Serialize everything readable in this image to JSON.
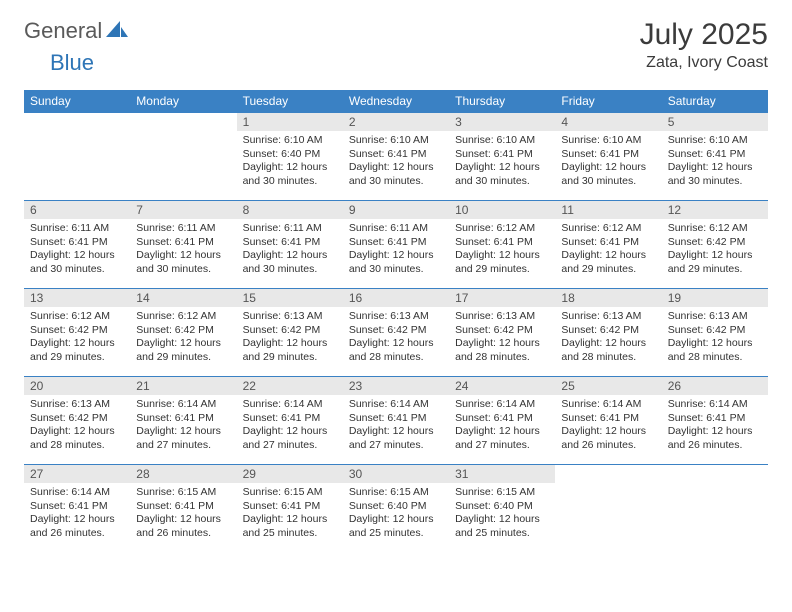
{
  "logo": {
    "general": "General",
    "blue": "Blue"
  },
  "title": {
    "month": "July 2025",
    "location": "Zata, Ivory Coast"
  },
  "colors": {
    "header_bg": "#3a81c4",
    "header_text": "#ffffff",
    "daynum_bg": "#e8e8e8",
    "border": "#3a81c4",
    "logo_blue": "#2e75b6",
    "logo_gray": "#5a5a5a"
  },
  "weekdays": [
    "Sunday",
    "Monday",
    "Tuesday",
    "Wednesday",
    "Thursday",
    "Friday",
    "Saturday"
  ],
  "first_day_index": 2,
  "days_in_month": 31,
  "days": {
    "1": {
      "sunrise": "6:10 AM",
      "sunset": "6:40 PM",
      "daylight": "12 hours and 30 minutes."
    },
    "2": {
      "sunrise": "6:10 AM",
      "sunset": "6:41 PM",
      "daylight": "12 hours and 30 minutes."
    },
    "3": {
      "sunrise": "6:10 AM",
      "sunset": "6:41 PM",
      "daylight": "12 hours and 30 minutes."
    },
    "4": {
      "sunrise": "6:10 AM",
      "sunset": "6:41 PM",
      "daylight": "12 hours and 30 minutes."
    },
    "5": {
      "sunrise": "6:10 AM",
      "sunset": "6:41 PM",
      "daylight": "12 hours and 30 minutes."
    },
    "6": {
      "sunrise": "6:11 AM",
      "sunset": "6:41 PM",
      "daylight": "12 hours and 30 minutes."
    },
    "7": {
      "sunrise": "6:11 AM",
      "sunset": "6:41 PM",
      "daylight": "12 hours and 30 minutes."
    },
    "8": {
      "sunrise": "6:11 AM",
      "sunset": "6:41 PM",
      "daylight": "12 hours and 30 minutes."
    },
    "9": {
      "sunrise": "6:11 AM",
      "sunset": "6:41 PM",
      "daylight": "12 hours and 30 minutes."
    },
    "10": {
      "sunrise": "6:12 AM",
      "sunset": "6:41 PM",
      "daylight": "12 hours and 29 minutes."
    },
    "11": {
      "sunrise": "6:12 AM",
      "sunset": "6:41 PM",
      "daylight": "12 hours and 29 minutes."
    },
    "12": {
      "sunrise": "6:12 AM",
      "sunset": "6:42 PM",
      "daylight": "12 hours and 29 minutes."
    },
    "13": {
      "sunrise": "6:12 AM",
      "sunset": "6:42 PM",
      "daylight": "12 hours and 29 minutes."
    },
    "14": {
      "sunrise": "6:12 AM",
      "sunset": "6:42 PM",
      "daylight": "12 hours and 29 minutes."
    },
    "15": {
      "sunrise": "6:13 AM",
      "sunset": "6:42 PM",
      "daylight": "12 hours and 29 minutes."
    },
    "16": {
      "sunrise": "6:13 AM",
      "sunset": "6:42 PM",
      "daylight": "12 hours and 28 minutes."
    },
    "17": {
      "sunrise": "6:13 AM",
      "sunset": "6:42 PM",
      "daylight": "12 hours and 28 minutes."
    },
    "18": {
      "sunrise": "6:13 AM",
      "sunset": "6:42 PM",
      "daylight": "12 hours and 28 minutes."
    },
    "19": {
      "sunrise": "6:13 AM",
      "sunset": "6:42 PM",
      "daylight": "12 hours and 28 minutes."
    },
    "20": {
      "sunrise": "6:13 AM",
      "sunset": "6:42 PM",
      "daylight": "12 hours and 28 minutes."
    },
    "21": {
      "sunrise": "6:14 AM",
      "sunset": "6:41 PM",
      "daylight": "12 hours and 27 minutes."
    },
    "22": {
      "sunrise": "6:14 AM",
      "sunset": "6:41 PM",
      "daylight": "12 hours and 27 minutes."
    },
    "23": {
      "sunrise": "6:14 AM",
      "sunset": "6:41 PM",
      "daylight": "12 hours and 27 minutes."
    },
    "24": {
      "sunrise": "6:14 AM",
      "sunset": "6:41 PM",
      "daylight": "12 hours and 27 minutes."
    },
    "25": {
      "sunrise": "6:14 AM",
      "sunset": "6:41 PM",
      "daylight": "12 hours and 26 minutes."
    },
    "26": {
      "sunrise": "6:14 AM",
      "sunset": "6:41 PM",
      "daylight": "12 hours and 26 minutes."
    },
    "27": {
      "sunrise": "6:14 AM",
      "sunset": "6:41 PM",
      "daylight": "12 hours and 26 minutes."
    },
    "28": {
      "sunrise": "6:15 AM",
      "sunset": "6:41 PM",
      "daylight": "12 hours and 26 minutes."
    },
    "29": {
      "sunrise": "6:15 AM",
      "sunset": "6:41 PM",
      "daylight": "12 hours and 25 minutes."
    },
    "30": {
      "sunrise": "6:15 AM",
      "sunset": "6:40 PM",
      "daylight": "12 hours and 25 minutes."
    },
    "31": {
      "sunrise": "6:15 AM",
      "sunset": "6:40 PM",
      "daylight": "12 hours and 25 minutes."
    }
  },
  "labels": {
    "sunrise_prefix": "Sunrise: ",
    "sunset_prefix": "Sunset: ",
    "daylight_prefix": "Daylight: "
  }
}
